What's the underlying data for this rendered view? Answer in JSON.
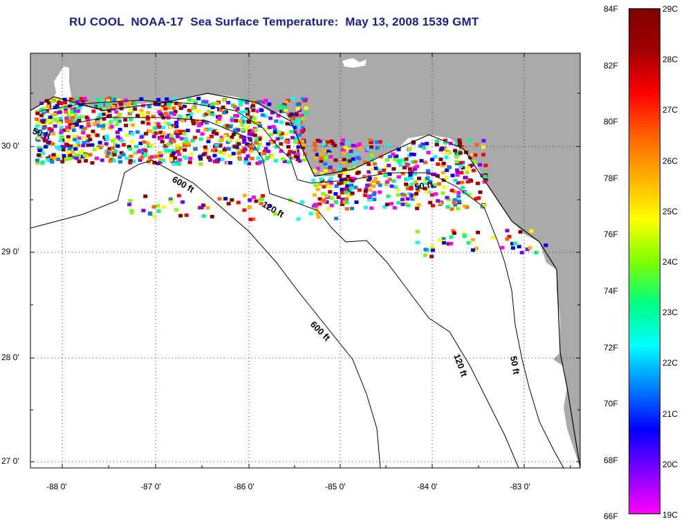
{
  "title": "RU COOL  NOAA-17  Sea Surface Temperature:  May 13, 2008 1539 GMT",
  "map": {
    "land_color": "#aaaaaa",
    "water_color": "#ffffff",
    "lon_ticks": [
      "-88 0'",
      "-87 0'",
      "-86 0'",
      "-85 0'",
      "-84 0'",
      "-83 0'"
    ],
    "lat_ticks": [
      "30 0'",
      "29 0'",
      "28 0'",
      "27 0'"
    ],
    "contour_labels": [
      "50 ft",
      "600 ft",
      "120 ft",
      "50 ft",
      "600 ft",
      "120 ft",
      "50 ft"
    ]
  },
  "colorbar": {
    "fahrenheit": [
      "84F",
      "82F",
      "80F",
      "78F",
      "76F",
      "74F",
      "72F",
      "70F",
      "68F",
      "66F"
    ],
    "celsius": [
      "29C",
      "28C",
      "27C",
      "26C",
      "25C",
      "24C",
      "23C",
      "22C",
      "21C",
      "20C",
      "19C"
    ],
    "colors": [
      "#ff00ff",
      "#8000ff",
      "#0000ff",
      "#0080ff",
      "#00ffff",
      "#00ff80",
      "#80ff00",
      "#ffff00",
      "#ffb000",
      "#ff6000",
      "#ff0000",
      "#a00000",
      "#800000"
    ]
  }
}
